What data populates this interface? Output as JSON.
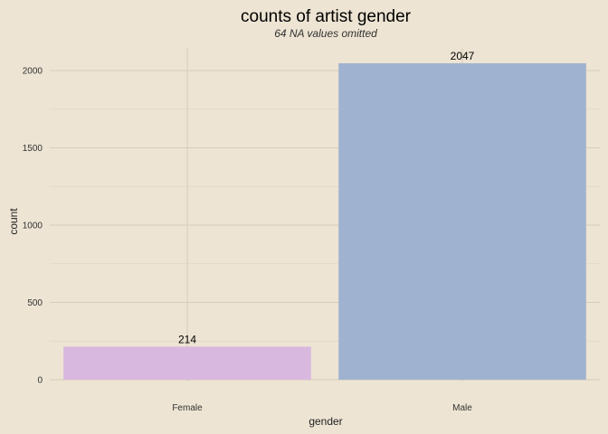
{
  "chart_data": {
    "type": "bar",
    "title": "counts of artist gender",
    "subtitle": "64 NA values omitted",
    "xlabel": "gender",
    "ylabel": "count",
    "categories": [
      "Female",
      "Male"
    ],
    "values": [
      214,
      2047
    ],
    "data_labels": [
      "214",
      "2047"
    ],
    "bar_colors": [
      "#d9b8e0",
      "#9fb3d0"
    ],
    "background_color": "#ede4d3",
    "yticks": [
      0,
      500,
      1000,
      1500,
      2000
    ],
    "ytick_labels": [
      "0",
      "500",
      "1000",
      "1500",
      "2000"
    ],
    "ylim": [
      0,
      2150
    ],
    "grid": true,
    "legend": "none"
  }
}
